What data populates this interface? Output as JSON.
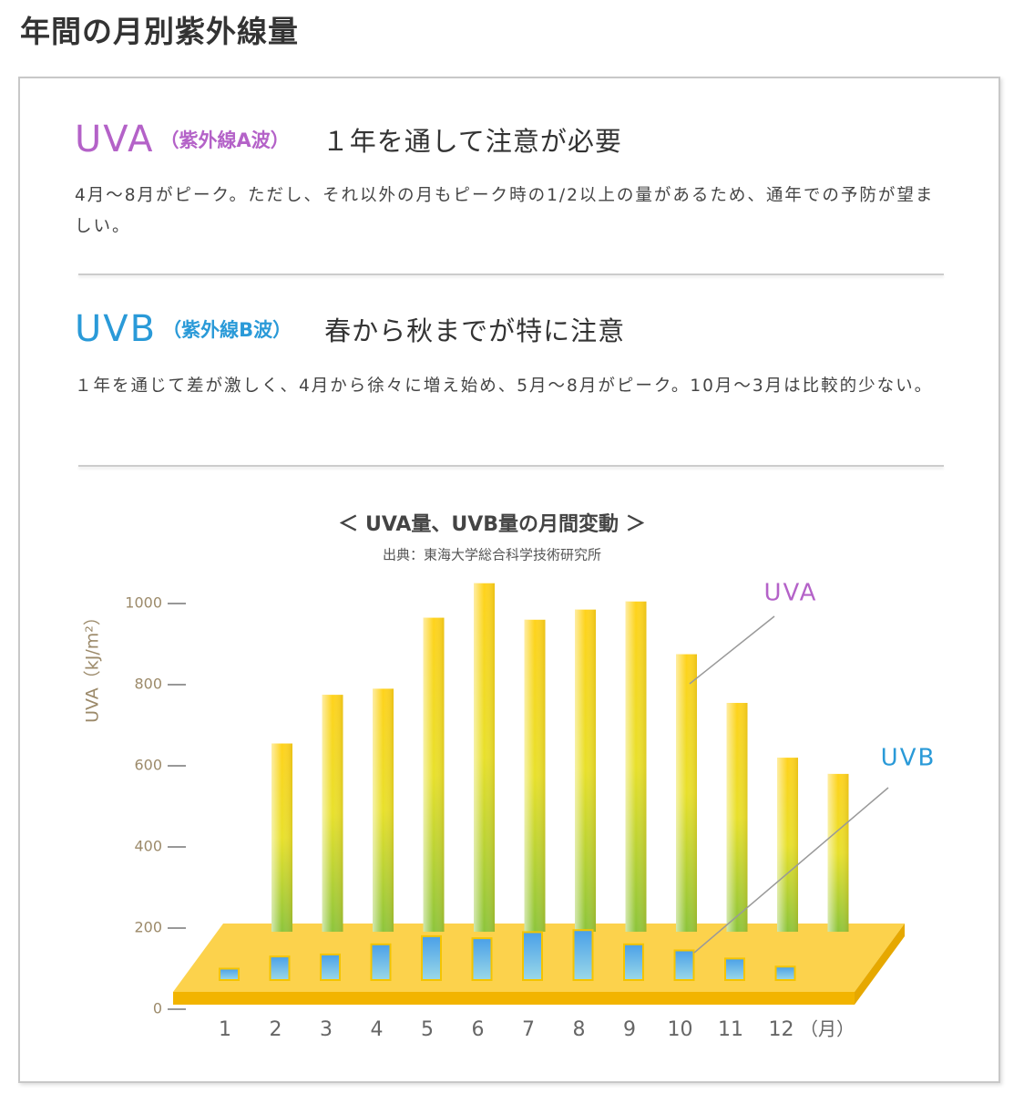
{
  "header": {
    "title": "年間の月別紫外線量"
  },
  "sections": [
    {
      "code": "UVA",
      "subtitle": "（紫外線A波）",
      "tagline": "１年を通して注意が必要",
      "text": "4月〜8月がピーク。ただし、それ以外の月もピーク時の1/2以上の量があるため、通年での予防が望ましい。"
    },
    {
      "code": "UVB",
      "subtitle": "（紫外線B波）",
      "tagline": "春から秋までが特に注意",
      "text": "１年を通じて差が激しく、4月から徐々に増え始め、5月〜8月がピーク。10月〜3月は比較的少ない。"
    }
  ],
  "chart_data": {
    "type": "bar",
    "title": "＜ UVA量、UVB量の月間変動 ＞",
    "subtitle": "出典：東海大学総合科学技術研究所",
    "y_label": "UVA（kJ/m²）",
    "x_unit": "（月）",
    "categories": [
      "1",
      "2",
      "3",
      "4",
      "5",
      "6",
      "7",
      "8",
      "9",
      "10",
      "11",
      "12"
    ],
    "series": [
      {
        "name": "UVA",
        "color": "#b462c8",
        "values": [
          655,
          775,
          790,
          965,
          1050,
          960,
          985,
          1005,
          875,
          755,
          620,
          580
        ]
      },
      {
        "name": "UVB",
        "color": "#2a9ad8",
        "values": [
          100,
          130,
          135,
          160,
          180,
          175,
          190,
          195,
          160,
          145,
          125,
          105
        ]
      }
    ],
    "ylim": [
      0,
      1000
    ],
    "yticks": [
      0,
      200,
      400,
      600,
      800,
      1000
    ]
  }
}
